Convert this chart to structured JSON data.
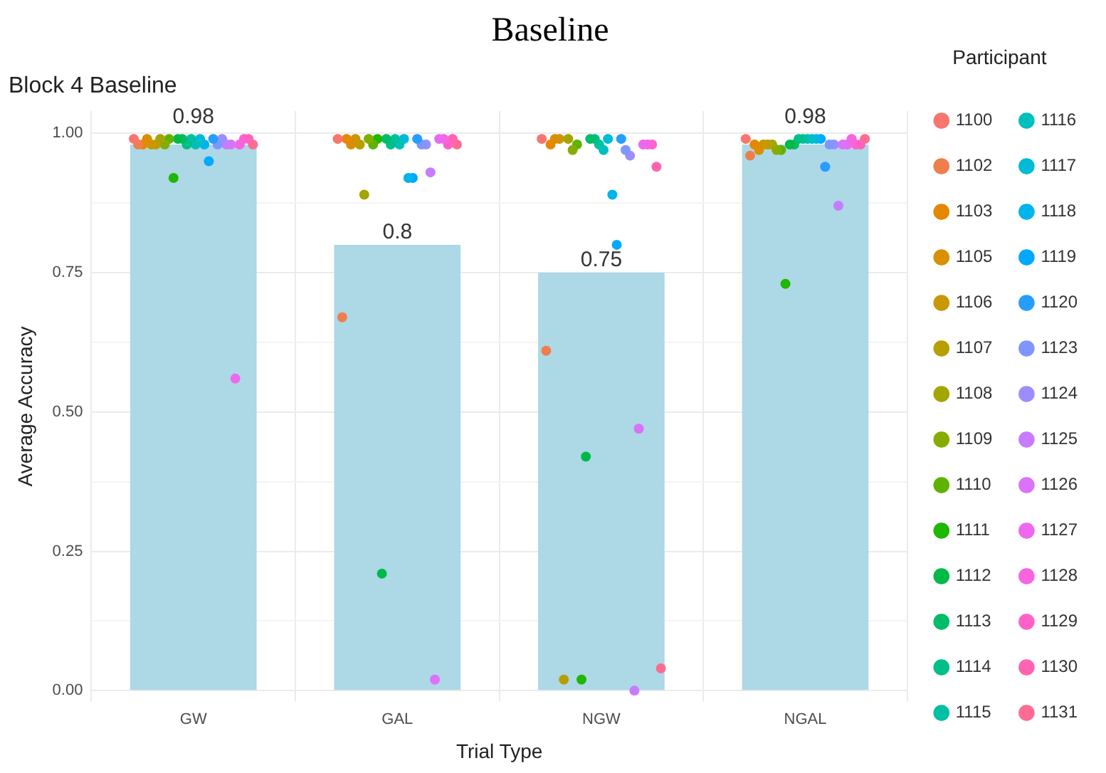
{
  "chart_data": {
    "type": "bar",
    "title": "Baseline",
    "subtitle": "Block 4 Baseline",
    "xlabel": "Trial Type",
    "ylabel": "Average Accuracy",
    "legend_title": "Participant",
    "legend": "right",
    "grid": true,
    "marker": "circle",
    "categories": [
      "GW",
      "GAL",
      "NGW",
      "NGAL"
    ],
    "ylim": [
      -0.02,
      1.04
    ],
    "yticks": [
      {
        "value": 0,
        "label": "0.00"
      },
      {
        "value": 0.125,
        "label": null
      },
      {
        "value": 0.25,
        "label": "0.25"
      },
      {
        "value": 0.375,
        "label": null
      },
      {
        "value": 0.5,
        "label": "0.50"
      },
      {
        "value": 0.625,
        "label": null
      },
      {
        "value": 0.75,
        "label": "0.75"
      },
      {
        "value": 0.875,
        "label": null
      },
      {
        "value": 1,
        "label": "1.00"
      }
    ],
    "series": [
      {
        "color": "#add8e6",
        "values": [
          0.98,
          0.8,
          0.75,
          0.98
        ],
        "value_labels": [
          "0.98",
          "0.8",
          "0.75",
          "0.98"
        ]
      },
      {
        "type": "scatter",
        "name": "1100",
        "color": "#f8766d",
        "x": [
          "GW",
          "GAL",
          "NGW",
          "NGAL"
        ],
        "values": [
          0.99,
          0.99,
          0.99,
          0.99
        ]
      },
      {
        "type": "scatter",
        "name": "1102",
        "color": "#f07e4c",
        "x": [
          "GW",
          "GAL",
          "NGW",
          "NGAL"
        ],
        "values": [
          0.98,
          0.67,
          0.61,
          0.96
        ]
      },
      {
        "type": "scatter",
        "name": "1103",
        "color": "#e58700",
        "x": [
          "GW",
          "GAL",
          "NGW",
          "NGAL"
        ],
        "values": [
          0.98,
          0.99,
          0.98,
          0.98
        ]
      },
      {
        "type": "scatter",
        "name": "1105",
        "color": "#d89000",
        "x": [
          "GW",
          "GAL",
          "NGW",
          "NGAL"
        ],
        "values": [
          0.99,
          0.98,
          0.99,
          0.97
        ]
      },
      {
        "type": "scatter",
        "name": "1106",
        "color": "#c99800",
        "x": [
          "GW",
          "GAL",
          "NGW",
          "NGAL"
        ],
        "values": [
          0.98,
          0.99,
          0.99,
          0.98
        ]
      },
      {
        "type": "scatter",
        "name": "1107",
        "color": "#b79f00",
        "x": [
          "GW",
          "GAL",
          "NGW",
          "NGAL"
        ],
        "values": [
          0.98,
          0.98,
          0.02,
          0.98
        ]
      },
      {
        "type": "scatter",
        "name": "1108",
        "color": "#a3a500",
        "x": [
          "GW",
          "GAL",
          "NGW",
          "NGAL"
        ],
        "values": [
          0.99,
          0.89,
          0.99,
          0.98
        ]
      },
      {
        "type": "scatter",
        "name": "1109",
        "color": "#85ad00",
        "x": [
          "GW",
          "GAL",
          "NGW",
          "NGAL"
        ],
        "values": [
          0.98,
          0.99,
          0.97,
          0.97
        ]
      },
      {
        "type": "scatter",
        "name": "1110",
        "color": "#5eb300",
        "x": [
          "GW",
          "GAL",
          "NGW",
          "NGAL"
        ],
        "values": [
          0.99,
          0.98,
          0.98,
          0.97
        ]
      },
      {
        "type": "scatter",
        "name": "1111",
        "color": "#1fb700",
        "x": [
          "GW",
          "GAL",
          "NGW",
          "NGAL"
        ],
        "values": [
          0.92,
          0.99,
          0.02,
          0.73
        ]
      },
      {
        "type": "scatter",
        "name": "1112",
        "color": "#00ba48",
        "x": [
          "GW",
          "GAL",
          "NGW",
          "NGAL"
        ],
        "values": [
          0.99,
          0.21,
          0.42,
          0.98
        ]
      },
      {
        "type": "scatter",
        "name": "1113",
        "color": "#00bd6a",
        "x": [
          "GW",
          "GAL",
          "NGW",
          "NGAL"
        ],
        "values": [
          0.99,
          0.99,
          0.99,
          0.98
        ]
      },
      {
        "type": "scatter",
        "name": "1114",
        "color": "#00bf88",
        "x": [
          "GW",
          "GAL",
          "NGW",
          "NGAL"
        ],
        "values": [
          0.98,
          0.98,
          0.99,
          0.99
        ]
      },
      {
        "type": "scatter",
        "name": "1115",
        "color": "#00c0a4",
        "x": [
          "GW",
          "GAL",
          "NGW",
          "NGAL"
        ],
        "values": [
          0.99,
          0.99,
          0.98,
          0.99
        ]
      },
      {
        "type": "scatter",
        "name": "1116",
        "color": "#00bfbd",
        "x": [
          "GW",
          "GAL",
          "NGW",
          "NGAL"
        ],
        "values": [
          0.98,
          0.98,
          0.97,
          0.99
        ]
      },
      {
        "type": "scatter",
        "name": "1117",
        "color": "#00bbd6",
        "x": [
          "GW",
          "GAL",
          "NGW",
          "NGAL"
        ],
        "values": [
          0.99,
          0.99,
          0.99,
          0.99
        ]
      },
      {
        "type": "scatter",
        "name": "1118",
        "color": "#00b4ec",
        "x": [
          "GW",
          "GAL",
          "NGW",
          "NGAL"
        ],
        "values": [
          0.98,
          0.92,
          0.89,
          0.99
        ]
      },
      {
        "type": "scatter",
        "name": "1119",
        "color": "#00a9ff",
        "x": [
          "GW",
          "GAL",
          "NGW",
          "NGAL"
        ],
        "values": [
          0.95,
          0.92,
          0.8,
          0.99
        ]
      },
      {
        "type": "scatter",
        "name": "1120",
        "color": "#279dff",
        "x": [
          "GW",
          "GAL",
          "NGW",
          "NGAL"
        ],
        "values": [
          0.99,
          0.99,
          0.99,
          0.94
        ]
      },
      {
        "type": "scatter",
        "name": "1123",
        "color": "#7f96ff",
        "x": [
          "GW",
          "GAL",
          "NGW",
          "NGAL"
        ],
        "values": [
          0.98,
          0.98,
          0.97,
          0.98
        ]
      },
      {
        "type": "scatter",
        "name": "1124",
        "color": "#9c8dff",
        "x": [
          "GW",
          "GAL",
          "NGW",
          "NGAL"
        ],
        "values": [
          0.99,
          0.98,
          0.96,
          0.98
        ]
      },
      {
        "type": "scatter",
        "name": "1125",
        "color": "#c77cff",
        "x": [
          "GW",
          "GAL",
          "NGW",
          "NGAL"
        ],
        "values": [
          0.98,
          0.93,
          0.0,
          0.87
        ]
      },
      {
        "type": "scatter",
        "name": "1126",
        "color": "#dc71fa",
        "x": [
          "GW",
          "GAL",
          "NGW",
          "NGAL"
        ],
        "values": [
          0.98,
          0.02,
          0.47,
          0.98
        ]
      },
      {
        "type": "scatter",
        "name": "1127",
        "color": "#ec69ef",
        "x": [
          "GW",
          "GAL",
          "NGW",
          "NGAL"
        ],
        "values": [
          0.56,
          0.99,
          0.98,
          0.98
        ]
      },
      {
        "type": "scatter",
        "name": "1128",
        "color": "#f863df",
        "x": [
          "GW",
          "GAL",
          "NGW",
          "NGAL"
        ],
        "values": [
          0.98,
          0.99,
          0.98,
          0.99
        ]
      },
      {
        "type": "scatter",
        "name": "1129",
        "color": "#ff61c9",
        "x": [
          "GW",
          "GAL",
          "NGW",
          "NGAL"
        ],
        "values": [
          0.99,
          0.98,
          0.98,
          0.98
        ]
      },
      {
        "type": "scatter",
        "name": "1130",
        "color": "#ff64b0",
        "x": [
          "GW",
          "GAL",
          "NGW",
          "NGAL"
        ],
        "values": [
          0.99,
          0.99,
          0.94,
          0.98
        ]
      },
      {
        "type": "scatter",
        "name": "1131",
        "color": "#ff6c91",
        "x": [
          "GW",
          "GAL",
          "NGW",
          "NGAL"
        ],
        "values": [
          0.98,
          0.98,
          0.04,
          0.99
        ]
      }
    ]
  }
}
